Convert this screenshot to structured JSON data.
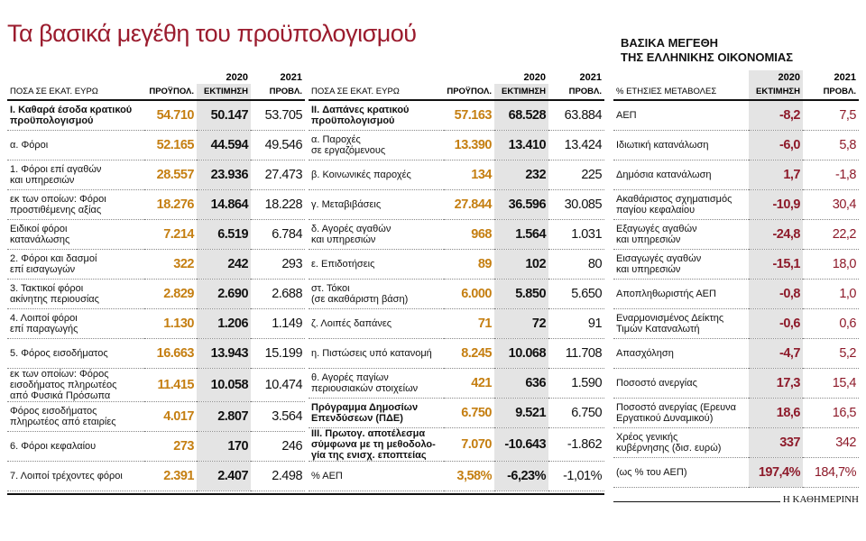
{
  "header": {
    "title": "Τα βασικά μεγέθη του προϋπολογισμού"
  },
  "budget_tables": [
    {
      "year_headers": [
        "2020",
        "2021"
      ],
      "columns": [
        "ΠΟΣΑ ΣΕ ΕΚΑΤ. ΕΥΡΩ",
        "ΠΡΟΫΠΟΛ.",
        "ΕΚΤΙΜΗΣΗ",
        "ΠΡΟΒΛ."
      ],
      "rows": [
        [
          "I. Καθαρά έσοδα κρατικού\nπροϋπολογισμού",
          "54.710",
          "50.147",
          "53.705"
        ],
        [
          "α. Φόροι",
          "52.165",
          "44.594",
          "49.546"
        ],
        [
          "1. Φόροι επί αγαθών\nκαι υπηρεσιών",
          "28.557",
          "23.936",
          "27.473"
        ],
        [
          "εκ των οποίων: Φόροι\nπροστιθέμενης αξίας",
          "18.276",
          "14.864",
          "18.228"
        ],
        [
          "Ειδικοί φόροι\nκατανάλωσης",
          "7.214",
          "6.519",
          "6.784"
        ],
        [
          "2. Φόροι και δασμοί\nεπί εισαγωγών",
          "322",
          "242",
          "293"
        ],
        [
          "3. Τακτικοί φόροι\nακίνητης περιουσίας",
          "2.829",
          "2.690",
          "2.688"
        ],
        [
          "4. Λοιποί φόροι\nεπί παραγωγής",
          "1.130",
          "1.206",
          "1.149"
        ],
        [
          "5. Φόρος εισοδήματος",
          "16.663",
          "13.943",
          "15.199"
        ],
        [
          "εκ των οποίων: Φόρος\nεισοδήματος πληρωτέος\nαπό Φυσικά Πρόσωπα",
          "11.415",
          "10.058",
          "10.474"
        ],
        [
          "Φόρος εισοδήματος\nπληρωτέος από εταιρίες",
          "4.017",
          "2.807",
          "3.564"
        ],
        [
          "6. Φόροι κεφαλαίου",
          "273",
          "170",
          "246"
        ],
        [
          "7. Λοιποί τρέχοντες φόροι",
          "2.391",
          "2.407",
          "2.498"
        ]
      ]
    },
    {
      "year_headers": [
        "2020",
        "2021"
      ],
      "columns": [
        "ΠΟΣΑ ΣΕ ΕΚΑΤ. ΕΥΡΩ",
        "ΠΡΟΫΠΟΛ.",
        "ΕΚΤΙΜΗΣΗ",
        "ΠΡΟΒΛ."
      ],
      "rows": [
        [
          "II. Δαπάνες κρατικού\nπροϋπολογισμού",
          "57.163",
          "68.528",
          "63.884"
        ],
        [
          "α. Παροχές\nσε εργαζόμενους",
          "13.390",
          "13.410",
          "13.424"
        ],
        [
          "β. Κοινωνικές παροχές",
          "134",
          "232",
          "225"
        ],
        [
          "γ. Μεταβιβάσεις",
          "27.844",
          "36.596",
          "30.085"
        ],
        [
          "δ. Αγορές αγαθών\nκαι υπηρεσιών",
          "968",
          "1.564",
          "1.031"
        ],
        [
          "ε. Επιδοτήσεις",
          "89",
          "102",
          "80"
        ],
        [
          "στ. Τόκοι\n(σε ακαθάριστη βάση)",
          "6.000",
          "5.850",
          "5.650"
        ],
        [
          "ζ. Λοιπές δαπάνες",
          "71",
          "72",
          "91"
        ],
        [
          "η. Πιστώσεις υπό κατανομή",
          "8.245",
          "10.068",
          "11.708"
        ],
        [
          "θ. Αγορές παγίων\nπεριουσιακών στοιχείων",
          "421",
          "636",
          "1.590"
        ],
        [
          "Πρόγραμμα Δημοσίων\nΕπενδύσεων (ΠΔΕ)",
          "6.750",
          "9.521",
          "6.750"
        ],
        [
          "III. Πρωτογ. αποτέλεσμα\nσύμφωνα με τη μεθοδολο-\nγία της ενισχ. εποπτείας",
          "7.070",
          "-10.643",
          "-1.862"
        ],
        [
          "% ΑΕΠ",
          "3,58%",
          "-6,23%",
          "-1,01%"
        ]
      ]
    }
  ],
  "economy_table": {
    "title": "ΒΑΣΙΚΑ ΜΕΓΕΘΗ\nΤΗΣ ΕΛΛΗΝΙΚΗΣ ΟΙΚΟΝΟΜΙΑΣ",
    "year_headers": [
      "2020",
      "2021"
    ],
    "columns": [
      "% ΕΤΗΣΙΕΣ ΜΕΤΑΒΟΛΕΣ",
      "ΕΚΤΙΜΗΣΗ",
      "ΠΡΟΒΛ."
    ],
    "rows": [
      [
        "ΑΕΠ",
        "-8,2",
        "7,5"
      ],
      [
        "Ιδιωτική κατανάλωση",
        "-6,0",
        "5,8"
      ],
      [
        "Δημόσια κατανάλωση",
        "1,7",
        "-1,8"
      ],
      [
        "Ακαθάριστος σχηματισμός\nπαγίου κεφαλαίου",
        "-10,9",
        "30,4"
      ],
      [
        "Εξαγωγές αγαθών\nκαι υπηρεσιών",
        "-24,8",
        "22,2"
      ],
      [
        "Εισαγωγές αγαθών\nκαι υπηρεσιών",
        "-15,1",
        "18,0"
      ],
      [
        "Αποπληθωριστής ΑΕΠ",
        "-0,8",
        "1,0"
      ],
      [
        "Εναρμονισμένος Δείκτης\nΤιμών Καταναλωτή",
        "-0,6",
        "0,6"
      ],
      [
        "Απασχόληση",
        "-4,7",
        "5,2"
      ],
      [
        "Ποσοστό ανεργίας",
        "17,3",
        "15,4"
      ],
      [
        "Ποσοστό ανεργίας (Ερευνα\nΕργατικού Δυναμικού)",
        "18,6",
        "16,5"
      ],
      [
        "Χρέος γενικής\nκυβέρνησης (δισ. ευρώ)",
        "337",
        "342"
      ],
      [
        "(ως % του ΑΕΠ)",
        "197,4%",
        "184,7%"
      ]
    ]
  },
  "footer": {
    "source": "Η ΚΑΘΗΜΕΡΙΝΗ"
  }
}
